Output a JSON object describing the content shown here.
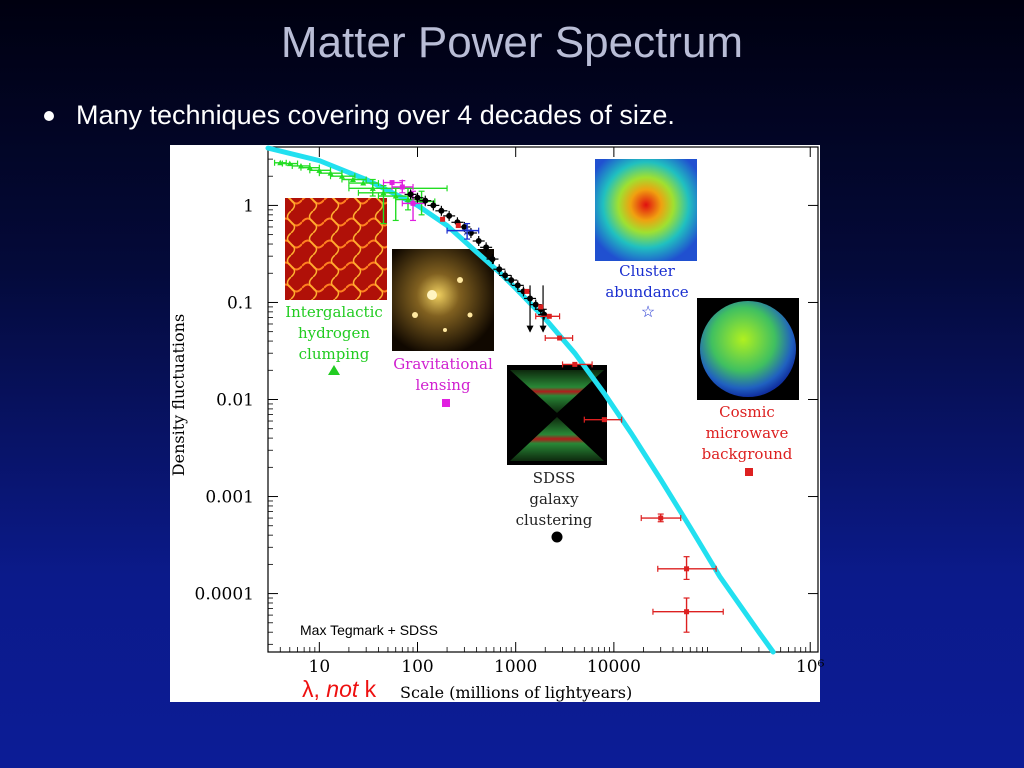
{
  "slide": {
    "title": "Matter Power Spectrum",
    "bullet": "Many techniques covering over 4 decades of size."
  },
  "chart_data": {
    "type": "scatter",
    "xlabel": "Scale (millions of lightyears)",
    "ylabel": "Density fluctuations",
    "xscale": "log",
    "yscale": "log",
    "xlim": [
      3,
      1200000
    ],
    "ylim": [
      2.5e-05,
      4
    ],
    "x_ticks": [
      10,
      100,
      1000,
      10000,
      1000000
    ],
    "x_tick_labels": [
      "10",
      "100",
      "1000",
      "10000",
      "10⁶"
    ],
    "y_ticks": [
      1,
      0.1,
      0.01,
      0.001,
      0.0001
    ],
    "y_tick_labels": [
      "1",
      "0.1",
      "0.01",
      "0.001",
      "0.0001"
    ],
    "credit": "Max Tegmark + SDSS",
    "annotation_lambda": "λ, ",
    "annotation_not": "not",
    "annotation_k": " k",
    "model_curve": {
      "color": "#22e0f0",
      "points": [
        [
          3,
          3.9
        ],
        [
          10,
          2.9
        ],
        [
          30,
          1.85
        ],
        [
          60,
          1.3
        ],
        [
          100,
          1.0
        ],
        [
          200,
          0.62
        ],
        [
          400,
          0.33
        ],
        [
          700,
          0.2
        ],
        [
          1000,
          0.14
        ],
        [
          2000,
          0.068
        ],
        [
          4000,
          0.03
        ],
        [
          8000,
          0.0115
        ],
        [
          15000,
          0.0045
        ],
        [
          30000,
          0.0015
        ],
        [
          60000,
          0.00048
        ],
        [
          120000,
          0.00015
        ],
        [
          300000,
          4e-05
        ],
        [
          420000,
          2.5e-05
        ]
      ]
    },
    "series": [
      {
        "name": "Intergalactic hydrogen clumping",
        "label_lines": [
          "Intergalactic",
          "hydrogen",
          "clumping"
        ],
        "color": "#22dd22",
        "marker": "triangle",
        "points": [
          {
            "x": 4,
            "y": 2.75,
            "xerr": [
              3.5,
              4.6
            ]
          },
          {
            "x": 5,
            "y": 2.7,
            "xerr": [
              4.2,
              6.0
            ]
          },
          {
            "x": 6.5,
            "y": 2.55,
            "xerr": [
              5.3,
              8.0
            ]
          },
          {
            "x": 8,
            "y": 2.45,
            "xerr": [
              6.5,
              10
            ]
          },
          {
            "x": 10,
            "y": 2.3,
            "xerr": [
              8,
              13
            ]
          },
          {
            "x": 13,
            "y": 2.15,
            "xerr": [
              10,
              17
            ]
          },
          {
            "x": 17,
            "y": 2.0,
            "xerr": [
              13,
              23
            ]
          },
          {
            "x": 22,
            "y": 1.85,
            "xerr": [
              17,
              30
            ]
          },
          {
            "x": 28,
            "y": 1.7,
            "xerr": [
              20,
              40
            ]
          },
          {
            "x": 35,
            "y": 1.5,
            "xerr": [
              20,
              200
            ],
            "yerr": [
              1.25,
              1.85
            ]
          },
          {
            "x": 45,
            "y": 1.35,
            "xerr": [
              25,
              60
            ],
            "yerr": [
              0.65,
              1.6
            ]
          },
          {
            "x": 60,
            "y": 1.25,
            "xerr": [
              40,
              80
            ],
            "yerr": [
              0.7,
              1.5
            ]
          },
          {
            "x": 80,
            "y": 1.15,
            "xerr": [
              60,
              110
            ],
            "yerr": [
              0.9,
              1.5
            ]
          },
          {
            "x": 110,
            "y": 1.1,
            "xerr": [
              80,
              150
            ],
            "yerr": [
              0.8,
              1.4
            ]
          }
        ]
      },
      {
        "name": "Gravitational lensing",
        "label_lines": [
          "Gravitational",
          "lensing"
        ],
        "color": "#e020e0",
        "marker": "square",
        "points": [
          {
            "x": 55,
            "y": 1.72,
            "xerr": [
              45,
              70
            ]
          },
          {
            "x": 70,
            "y": 1.55,
            "xerr": [
              55,
              90
            ],
            "yerr": [
              1.35,
              1.8
            ]
          },
          {
            "x": 90,
            "y": 1.05,
            "xerr": [
              70,
              120
            ],
            "yerr": [
              0.7,
              1.4
            ]
          }
        ]
      },
      {
        "name": "SDSS galaxy clustering",
        "label_lines": [
          "SDSS",
          "galaxy",
          "clustering"
        ],
        "color": "#000000",
        "marker": "circle",
        "points": [
          {
            "x": 85,
            "y": 1.3
          },
          {
            "x": 100,
            "y": 1.2
          },
          {
            "x": 120,
            "y": 1.12
          },
          {
            "x": 145,
            "y": 1.0
          },
          {
            "x": 175,
            "y": 0.88
          },
          {
            "x": 210,
            "y": 0.78
          },
          {
            "x": 255,
            "y": 0.67
          },
          {
            "x": 300,
            "y": 0.6
          },
          {
            "x": 350,
            "y": 0.52
          },
          {
            "x": 420,
            "y": 0.43
          },
          {
            "x": 500,
            "y": 0.37
          },
          {
            "x": 580,
            "y": 0.28
          },
          {
            "x": 680,
            "y": 0.22
          },
          {
            "x": 780,
            "y": 0.19
          },
          {
            "x": 900,
            "y": 0.17
          },
          {
            "x": 1050,
            "y": 0.15
          },
          {
            "x": 1200,
            "y": 0.13
          },
          {
            "x": 1400,
            "y": 0.11
          },
          {
            "x": 1600,
            "y": 0.095
          },
          {
            "x": 1800,
            "y": 0.085
          },
          {
            "x": 1950,
            "y": 0.075
          }
        ],
        "upper_limits": [
          {
            "x": 1400,
            "y": 0.05
          },
          {
            "x": 1900,
            "y": 0.05
          }
        ]
      },
      {
        "name": "Cluster abundance",
        "label_lines": [
          "Cluster",
          "abundance"
        ],
        "color": "#1a2fd0",
        "marker": "star",
        "points": [
          {
            "x": 320,
            "y": 0.55,
            "xerr": [
              200,
              420
            ],
            "yerr": [
              0.45,
              0.65
            ]
          }
        ]
      },
      {
        "name": "Cosmic microwave background",
        "label_lines": [
          "Cosmic",
          "microwave",
          "background"
        ],
        "color": "#dd2020",
        "marker": "square",
        "points": [
          {
            "x": 180,
            "y": 0.72
          },
          {
            "x": 260,
            "y": 0.62
          },
          {
            "x": 1300,
            "y": 0.13
          },
          {
            "x": 1800,
            "y": 0.09
          },
          {
            "x": 2200,
            "y": 0.072,
            "xerr": [
              1600,
              2800
            ]
          },
          {
            "x": 2800,
            "y": 0.043,
            "xerr": [
              2000,
              3800
            ]
          },
          {
            "x": 4000,
            "y": 0.023,
            "xerr": [
              3000,
              6000
            ]
          },
          {
            "x": 8000,
            "y": 0.0062,
            "xerr": [
              5000,
              12000
            ]
          },
          {
            "x": 30000,
            "y": 0.0006,
            "xerr": [
              19000,
              48000
            ],
            "yerr": [
              0.00055,
              0.00066
            ]
          },
          {
            "x": 55000,
            "y": 0.00018,
            "xerr": [
              28000,
              110000
            ],
            "yerr": [
              0.00014,
              0.00024
            ]
          },
          {
            "x": 55000,
            "y": 6.5e-05,
            "xerr": [
              25000,
              130000
            ],
            "yerr": [
              4e-05,
              9e-05
            ]
          }
        ]
      }
    ]
  }
}
